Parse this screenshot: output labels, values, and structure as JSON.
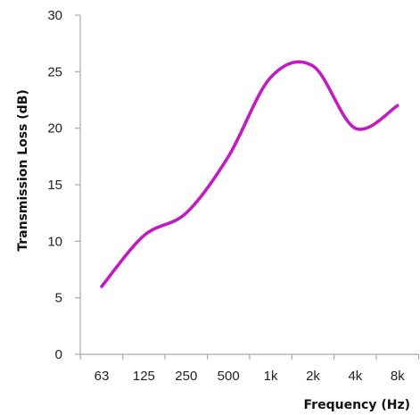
{
  "chart_data": {
    "type": "line",
    "title": "",
    "xlabel": "Frequency (Hz)",
    "ylabel": "Transmission Loss (dB)",
    "categories": [
      "63",
      "125",
      "250",
      "500",
      "1k",
      "2k",
      "4k",
      "8k"
    ],
    "ylim": [
      0,
      30
    ],
    "yticks": [
      0,
      5,
      10,
      15,
      20,
      25,
      30
    ],
    "series": [
      {
        "color": "#C21BC2",
        "smooth": true,
        "x_positions": [
          0,
          1,
          2,
          3,
          4,
          5,
          6,
          7
        ],
        "values": [
          6,
          10.5,
          12.5,
          17.5,
          24.5,
          25.5,
          20,
          22
        ]
      }
    ],
    "grid": false,
    "legend": "none"
  }
}
